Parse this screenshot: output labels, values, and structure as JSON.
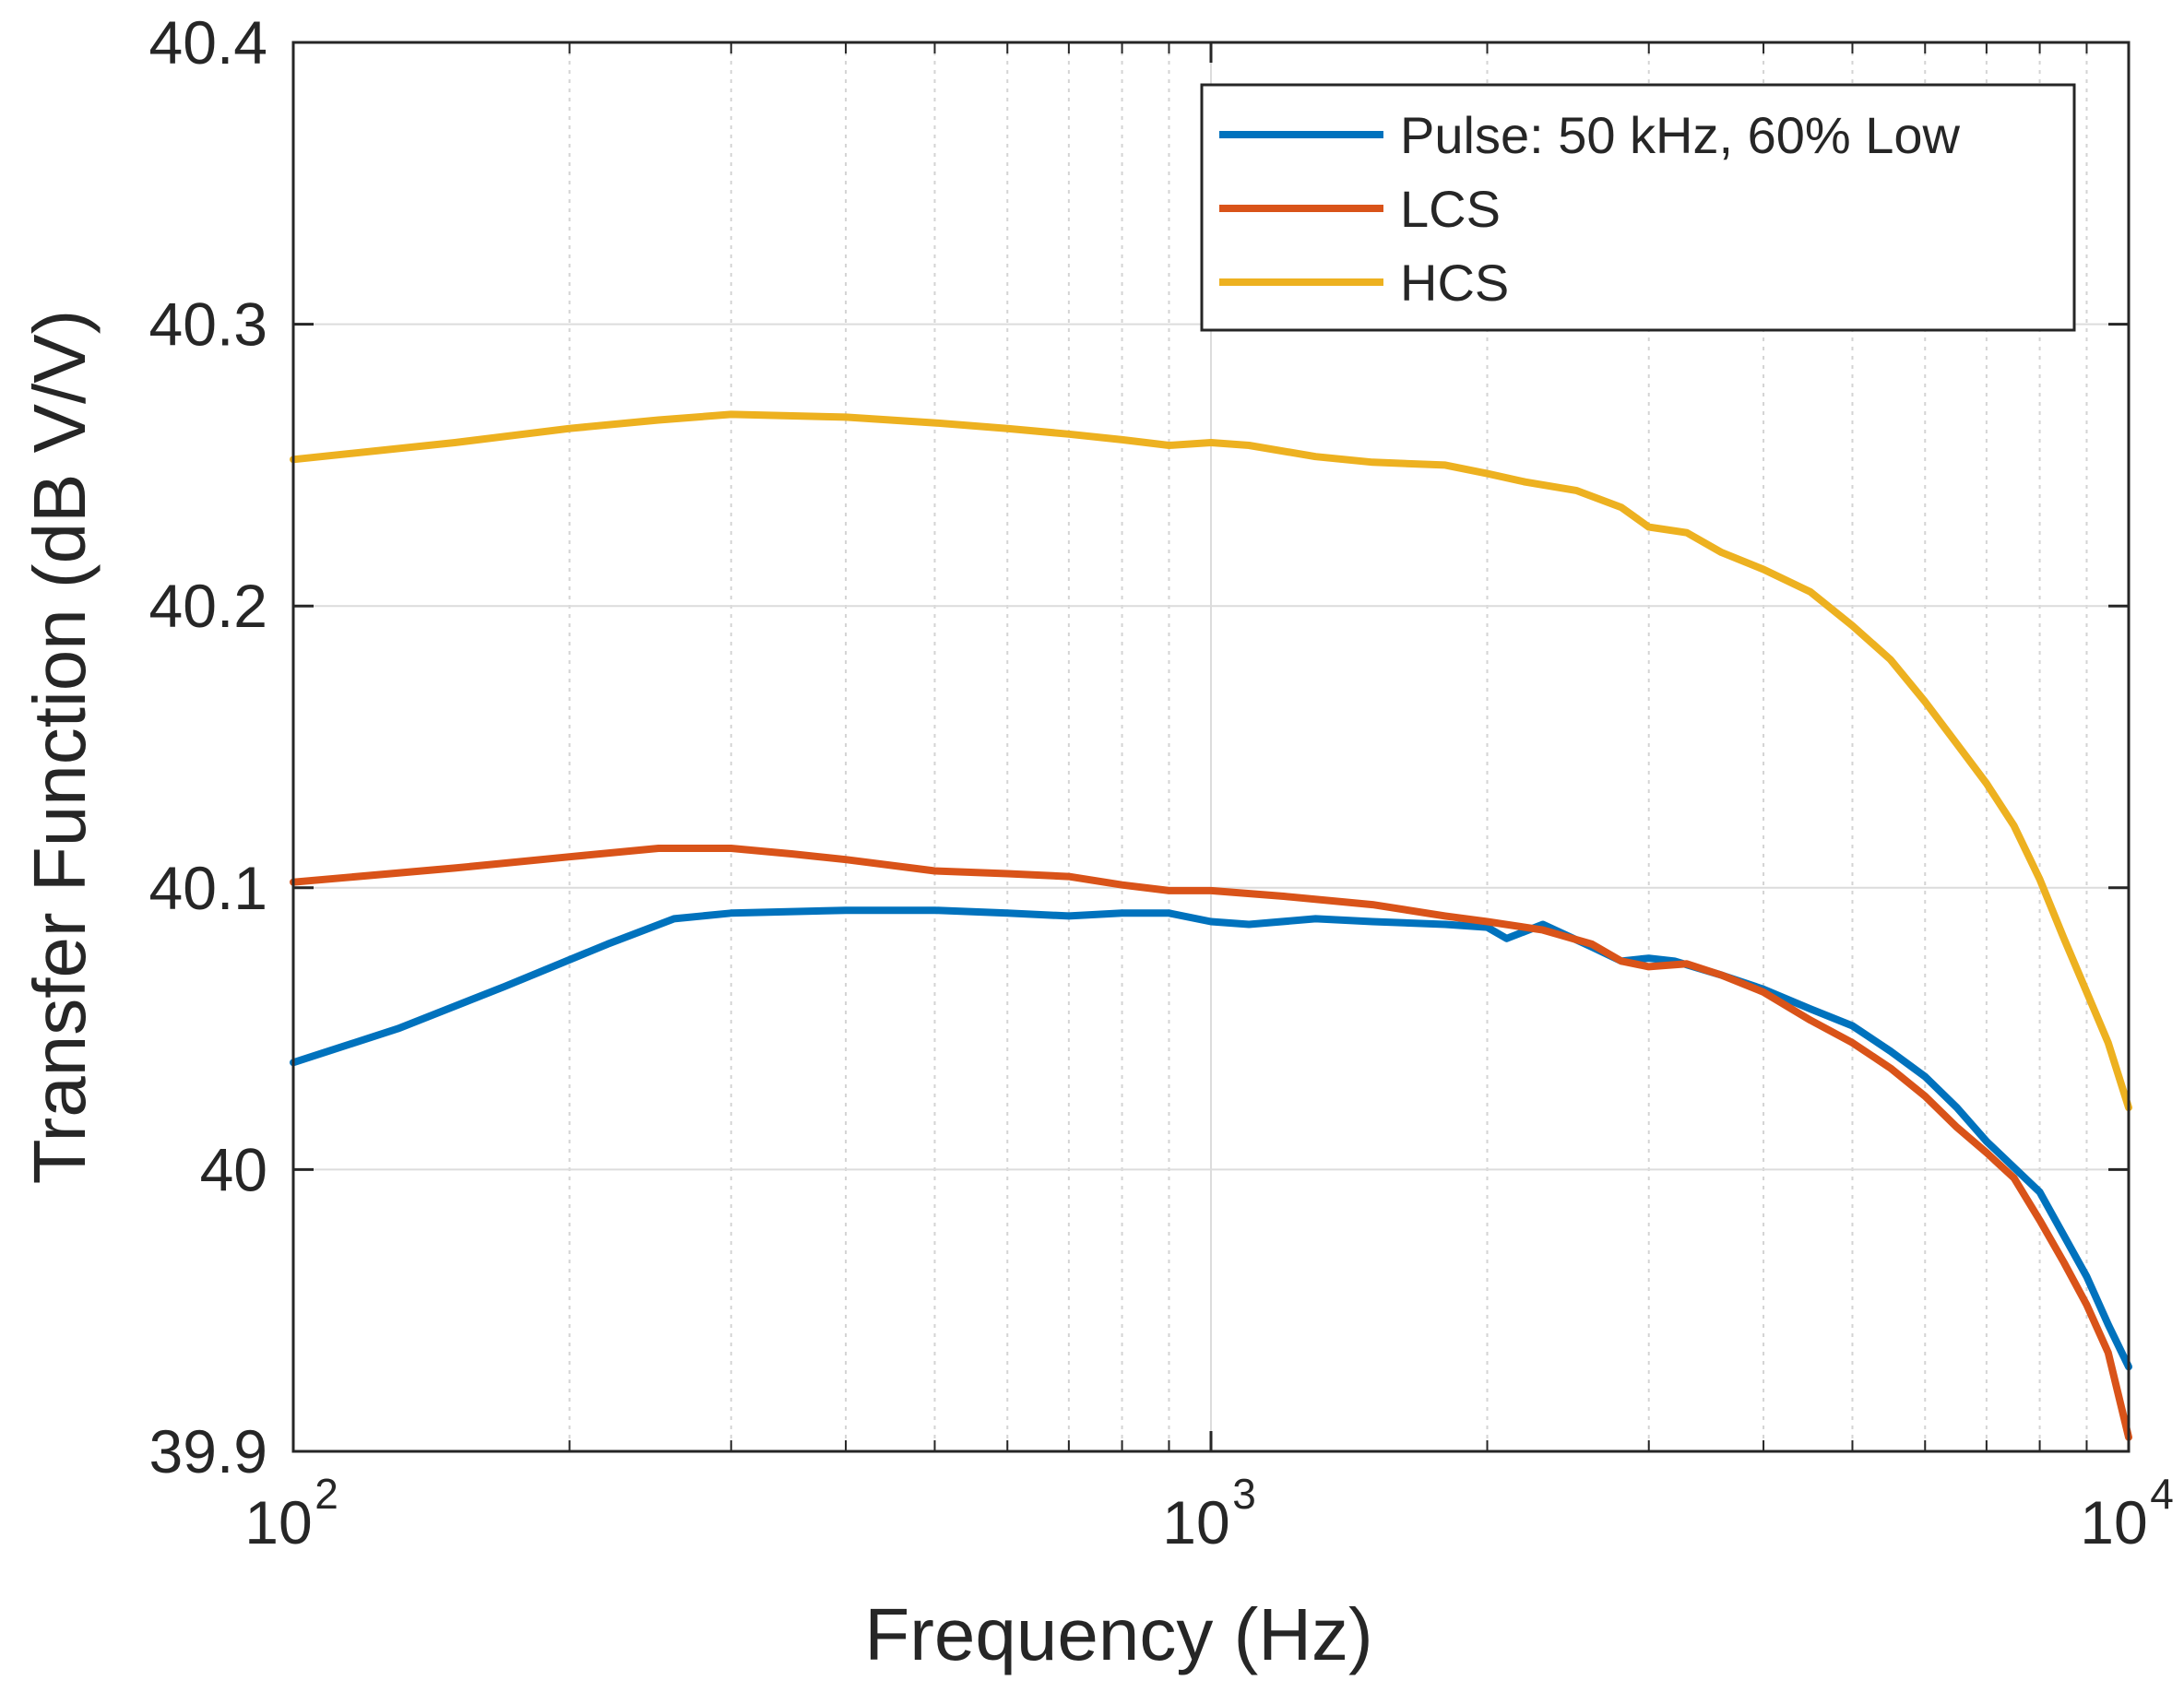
{
  "chart_data": {
    "type": "line",
    "title": "",
    "xlabel": "Frequency (Hz)",
    "ylabel": "Transfer Function (dB V/V)",
    "xscale": "log",
    "xlim": [
      100,
      10000
    ],
    "ylim": [
      39.9,
      40.4
    ],
    "grid": true,
    "legend_position": "top-right",
    "x_ticks": [
      {
        "value": 100,
        "base": "10",
        "exp": "2"
      },
      {
        "value": 1000,
        "base": "10",
        "exp": "3"
      },
      {
        "value": 10000,
        "base": "10",
        "exp": "4"
      }
    ],
    "y_ticks": [
      {
        "value": 39.9,
        "label": "39.9"
      },
      {
        "value": 40.0,
        "label": "40"
      },
      {
        "value": 40.1,
        "label": "40.1"
      },
      {
        "value": 40.2,
        "label": "40.2"
      },
      {
        "value": 40.3,
        "label": "40.3"
      },
      {
        "value": 40.4,
        "label": "40.4"
      }
    ],
    "series": [
      {
        "name": "Pulse: 50 kHz, 60% Low",
        "color": "#0072BD",
        "x": [
          100,
          130,
          170,
          220,
          260,
          300,
          400,
          500,
          600,
          700,
          800,
          900,
          1000,
          1100,
          1300,
          1500,
          1800,
          2000,
          2100,
          2300,
          2600,
          2800,
          3000,
          3200,
          3600,
          4000,
          4500,
          5000,
          5500,
          6000,
          6500,
          7000,
          8000,
          9000,
          9500,
          10000
        ],
        "values": [
          40.038,
          40.05,
          40.065,
          40.08,
          40.089,
          40.091,
          40.092,
          40.092,
          40.091,
          40.09,
          40.091,
          40.091,
          40.088,
          40.087,
          40.089,
          40.088,
          40.087,
          40.086,
          40.082,
          40.087,
          40.079,
          40.074,
          40.075,
          40.074,
          40.069,
          40.064,
          40.057,
          40.051,
          40.042,
          40.033,
          40.022,
          40.01,
          39.992,
          39.962,
          39.945,
          39.93
        ]
      },
      {
        "name": "LCS",
        "color": "#D95319",
        "x": [
          100,
          150,
          200,
          250,
          300,
          350,
          400,
          500,
          600,
          700,
          800,
          900,
          1000,
          1200,
          1500,
          1800,
          2000,
          2300,
          2600,
          2800,
          3000,
          3300,
          3600,
          4000,
          4500,
          5000,
          5500,
          6000,
          6500,
          7000,
          7500,
          8000,
          8500,
          9000,
          9500,
          10000
        ],
        "values": [
          40.102,
          40.107,
          40.111,
          40.114,
          40.114,
          40.112,
          40.11,
          40.106,
          40.105,
          40.104,
          40.101,
          40.099,
          40.099,
          40.097,
          40.094,
          40.09,
          40.088,
          40.085,
          40.08,
          40.074,
          40.072,
          40.073,
          40.069,
          40.063,
          40.053,
          40.045,
          40.036,
          40.026,
          40.015,
          40.006,
          39.997,
          39.982,
          39.967,
          39.952,
          39.935,
          39.905
        ]
      },
      {
        "name": "HCS",
        "color": "#EDB120",
        "x": [
          100,
          150,
          200,
          250,
          300,
          400,
          500,
          600,
          700,
          800,
          900,
          1000,
          1100,
          1300,
          1500,
          1800,
          2000,
          2200,
          2500,
          2800,
          3000,
          3300,
          3600,
          4000,
          4500,
          5000,
          5500,
          6000,
          6500,
          7000,
          7500,
          8000,
          8500,
          9000,
          9500,
          10000
        ],
        "values": [
          40.252,
          40.258,
          40.263,
          40.266,
          40.268,
          40.267,
          40.265,
          40.263,
          40.261,
          40.259,
          40.257,
          40.258,
          40.257,
          40.253,
          40.251,
          40.25,
          40.247,
          40.244,
          40.241,
          40.235,
          40.228,
          40.226,
          40.219,
          40.213,
          40.205,
          40.193,
          40.181,
          40.166,
          40.151,
          40.137,
          40.122,
          40.103,
          40.082,
          40.063,
          40.045,
          40.022
        ]
      }
    ]
  }
}
